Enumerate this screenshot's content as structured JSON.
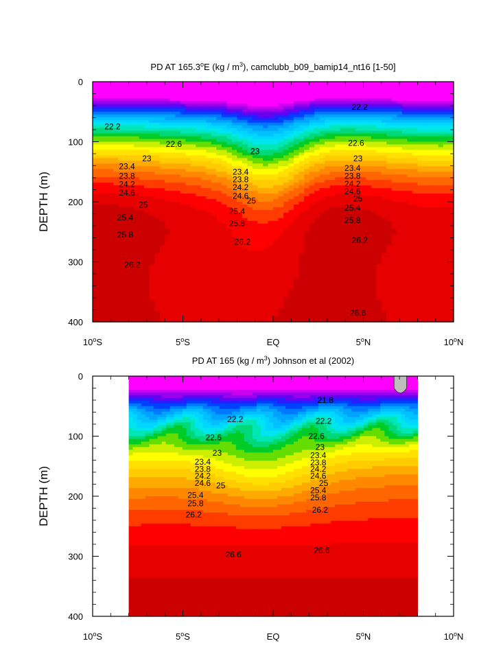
{
  "colors": {
    "palette": [
      "#ff00ff",
      "#cc00ee",
      "#9a00ee",
      "#6a00f0",
      "#2a1cff",
      "#0040ff",
      "#0078ff",
      "#00a4ff",
      "#00c0ff",
      "#00d6ff",
      "#00e6ee",
      "#00e6b4",
      "#00d87a",
      "#00cc28",
      "#66dd00",
      "#ccee00",
      "#ffff00",
      "#ffe000",
      "#ffcc00",
      "#ffaa00",
      "#ff8800",
      "#ff6600",
      "#ff3c00",
      "#ff0000",
      "#e60000",
      "#cc0000",
      "#b00000"
    ],
    "missing": "#bebebe"
  },
  "chart_data": [
    {
      "type": "contour",
      "title": "PD AT 165.3",
      "title_sup": "o",
      "title_rest": "E (kg / m",
      "title_sup2": "3",
      "title_end": "), camclubb_b09_bamip14_nt16 [1-50]",
      "ylabel": "DEPTH (m)",
      "xlim": [
        -10,
        10
      ],
      "ylim": [
        400,
        0
      ],
      "x_ticks": [
        {
          "value": -10,
          "num": "10",
          "sup": "o",
          "hem": "S"
        },
        {
          "value": -5,
          "num": "5",
          "sup": "o",
          "hem": "S"
        },
        {
          "value": 0,
          "num": "EQ",
          "sup": "",
          "hem": ""
        },
        {
          "value": 5,
          "num": "5",
          "sup": "o",
          "hem": "N"
        },
        {
          "value": 10,
          "num": "10",
          "sup": "o",
          "hem": "N"
        }
      ],
      "y_ticks": [
        0,
        100,
        200,
        300,
        400
      ],
      "data_x": [
        -10,
        10
      ],
      "base_level": 21.4,
      "level_step": 0.2,
      "contour_labels": [
        {
          "x": -8.9,
          "y": 75,
          "text": "22.2"
        },
        {
          "x": -5.5,
          "y": 104,
          "text": "22.6"
        },
        {
          "x": -7.0,
          "y": 128,
          "text": "23"
        },
        {
          "x": -8.1,
          "y": 141,
          "text": "23.4"
        },
        {
          "x": -8.1,
          "y": 157,
          "text": "23.8"
        },
        {
          "x": -8.1,
          "y": 171,
          "text": "24.2"
        },
        {
          "x": -8.1,
          "y": 185,
          "text": "24.6"
        },
        {
          "x": -7.2,
          "y": 205,
          "text": "25"
        },
        {
          "x": -8.2,
          "y": 226,
          "text": "25.4"
        },
        {
          "x": -8.2,
          "y": 255,
          "text": "25.8"
        },
        {
          "x": -7.8,
          "y": 305,
          "text": "26.2"
        },
        {
          "x": -1.8,
          "y": 150,
          "text": "23.4"
        },
        {
          "x": -1.8,
          "y": 163,
          "text": "23.8"
        },
        {
          "x": -1.8,
          "y": 176,
          "text": "24.2"
        },
        {
          "x": -1.8,
          "y": 190,
          "text": "24.6"
        },
        {
          "x": -1.2,
          "y": 198,
          "text": "25"
        },
        {
          "x": -2.0,
          "y": 216,
          "text": "25.4"
        },
        {
          "x": -2.0,
          "y": 236,
          "text": "25.8"
        },
        {
          "x": -1.7,
          "y": 267,
          "text": "26.2"
        },
        {
          "x": -1.0,
          "y": 116,
          "text": "23"
        },
        {
          "x": 4.6,
          "y": 102,
          "text": "22.6"
        },
        {
          "x": 4.7,
          "y": 128,
          "text": "23"
        },
        {
          "x": 4.4,
          "y": 144,
          "text": "23.4"
        },
        {
          "x": 4.4,
          "y": 157,
          "text": "23.8"
        },
        {
          "x": 4.4,
          "y": 170,
          "text": "24.2"
        },
        {
          "x": 4.4,
          "y": 183,
          "text": "24.6"
        },
        {
          "x": 4.7,
          "y": 195,
          "text": "25"
        },
        {
          "x": 4.4,
          "y": 210,
          "text": "25.4"
        },
        {
          "x": 4.4,
          "y": 231,
          "text": "25.8"
        },
        {
          "x": 4.8,
          "y": 264,
          "text": "26.2"
        },
        {
          "x": 4.7,
          "y": 385,
          "text": "26.6"
        },
        {
          "x": 4.8,
          "y": 42,
          "text": "22.2"
        }
      ]
    },
    {
      "type": "contour",
      "title": "PD AT 165 (kg / m",
      "title_sup": "3",
      "title_rest": ") Johnson et al (2002)",
      "ylabel": "DEPTH (m)",
      "xlim": [
        -10,
        10
      ],
      "ylim": [
        400,
        0
      ],
      "x_ticks": [
        {
          "value": -10,
          "num": "10",
          "sup": "o",
          "hem": "S"
        },
        {
          "value": -5,
          "num": "5",
          "sup": "o",
          "hem": "S"
        },
        {
          "value": 0,
          "num": "EQ",
          "sup": "",
          "hem": ""
        },
        {
          "value": 5,
          "num": "5",
          "sup": "o",
          "hem": "N"
        },
        {
          "value": 10,
          "num": "10",
          "sup": "o",
          "hem": "N"
        }
      ],
      "y_ticks": [
        0,
        100,
        200,
        300,
        400
      ],
      "data_x": [
        -8,
        8
      ],
      "base_level": 21.4,
      "level_step": 0.2,
      "contour_labels": [
        {
          "x": 2.9,
          "y": 40,
          "text": "21.8"
        },
        {
          "x": -2.1,
          "y": 72,
          "text": "22.2"
        },
        {
          "x": 2.8,
          "y": 75,
          "text": "22.2"
        },
        {
          "x": -3.3,
          "y": 102,
          "text": "22.6"
        },
        {
          "x": 2.4,
          "y": 100,
          "text": "22.6"
        },
        {
          "x": -3.1,
          "y": 128,
          "text": "23"
        },
        {
          "x": 2.6,
          "y": 118,
          "text": "23"
        },
        {
          "x": -3.9,
          "y": 143,
          "text": "23.4"
        },
        {
          "x": -3.9,
          "y": 155,
          "text": "23.8"
        },
        {
          "x": -3.9,
          "y": 166,
          "text": "24.2"
        },
        {
          "x": -3.9,
          "y": 178,
          "text": "24.6"
        },
        {
          "x": -2.9,
          "y": 182,
          "text": "25"
        },
        {
          "x": 2.5,
          "y": 132,
          "text": "23.4"
        },
        {
          "x": 2.5,
          "y": 144,
          "text": "23.8"
        },
        {
          "x": 2.5,
          "y": 155,
          "text": "24.2"
        },
        {
          "x": 2.5,
          "y": 166,
          "text": "24.6"
        },
        {
          "x": 2.8,
          "y": 178,
          "text": "25"
        },
        {
          "x": 2.5,
          "y": 190,
          "text": "25.4"
        },
        {
          "x": 2.5,
          "y": 202,
          "text": "25.8"
        },
        {
          "x": 2.6,
          "y": 223,
          "text": "26.2"
        },
        {
          "x": -4.3,
          "y": 198,
          "text": "25.4"
        },
        {
          "x": -4.3,
          "y": 212,
          "text": "25.8"
        },
        {
          "x": -4.4,
          "y": 231,
          "text": "26.2"
        },
        {
          "x": -2.2,
          "y": 297,
          "text": "26.6"
        },
        {
          "x": 2.7,
          "y": 290,
          "text": "26.6"
        }
      ]
    }
  ]
}
